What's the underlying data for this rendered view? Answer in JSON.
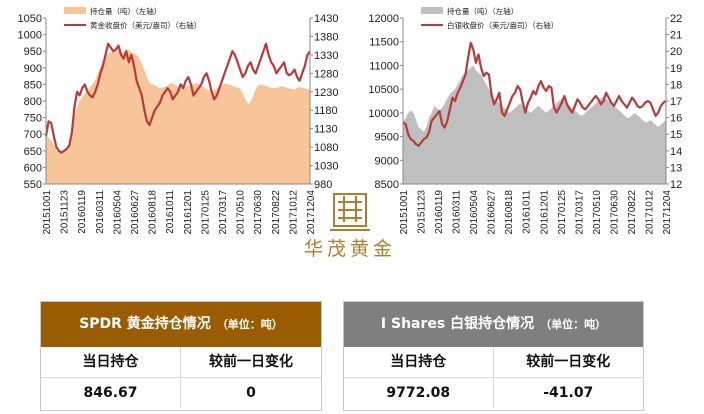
{
  "chart_data": [
    {
      "type": "area+line",
      "title": "",
      "xlabel": "",
      "legend": [
        "持仓量（吨）（左轴）",
        "黄金收盘价（美元/盎司）（右轴）"
      ],
      "legend_position": "top-left",
      "colors": {
        "area": "#f8c49a",
        "line": "#b83a3a"
      },
      "y_left": {
        "ticks": [
          550,
          600,
          650,
          700,
          750,
          800,
          850,
          900,
          950,
          1000,
          1050
        ],
        "range": [
          550,
          1050
        ]
      },
      "y_right": {
        "ticks": [
          980,
          1030,
          1080,
          1130,
          1180,
          1230,
          1280,
          1330,
          1380,
          1430
        ],
        "range": [
          980,
          1430
        ]
      },
      "x_ticks": [
        "20151001",
        "20151123",
        "20160119",
        "20160311",
        "20160504",
        "20160627",
        "20160818",
        "20161011",
        "20161201",
        "20170125",
        "20170317",
        "20170510",
        "20170630",
        "20170822",
        "20171012",
        "20171204"
      ],
      "series": [
        {
          "kind": "area",
          "axis": "left",
          "values": [
            700,
            690,
            680,
            670,
            650,
            650,
            645,
            648,
            650,
            660,
            700,
            750,
            780,
            800,
            810,
            820,
            830,
            840,
            850,
            860,
            880,
            900,
            920,
            930,
            940,
            945,
            950,
            952,
            955,
            950,
            945,
            950,
            955,
            948,
            945,
            940,
            935,
            920,
            900,
            880,
            860,
            850,
            850,
            845,
            840,
            840,
            842,
            845,
            850,
            855,
            850,
            845,
            840,
            840,
            842,
            845,
            848,
            850,
            852,
            855,
            850,
            845,
            840,
            835,
            830,
            832,
            835,
            840,
            845,
            850,
            852,
            850,
            848,
            845,
            842,
            840,
            835,
            820,
            800,
            790,
            800,
            820,
            840,
            848,
            850,
            848,
            845,
            842,
            840,
            838,
            840,
            842,
            845,
            843,
            840,
            838,
            836,
            835,
            840,
            842,
            840,
            838,
            836,
            834
          ]
        },
        {
          "kind": "line",
          "axis": "right",
          "values": [
            1110,
            1150,
            1145,
            1110,
            1080,
            1070,
            1065,
            1070,
            1075,
            1085,
            1120,
            1190,
            1230,
            1220,
            1240,
            1250,
            1230,
            1220,
            1215,
            1230,
            1250,
            1280,
            1300,
            1330,
            1360,
            1350,
            1340,
            1345,
            1355,
            1330,
            1320,
            1340,
            1310,
            1330,
            1300,
            1260,
            1240,
            1220,
            1180,
            1150,
            1140,
            1160,
            1180,
            1190,
            1200,
            1220,
            1230,
            1240,
            1230,
            1210,
            1220,
            1230,
            1250,
            1240,
            1260,
            1270,
            1250,
            1220,
            1230,
            1240,
            1250,
            1270,
            1280,
            1260,
            1230,
            1210,
            1220,
            1240,
            1260,
            1280,
            1300,
            1320,
            1340,
            1330,
            1310,
            1290,
            1270,
            1280,
            1300,
            1310,
            1290,
            1280,
            1300,
            1320,
            1340,
            1360,
            1330,
            1310,
            1300,
            1280,
            1290,
            1300,
            1310,
            1280,
            1275,
            1280,
            1290,
            1270,
            1260,
            1280,
            1300,
            1330,
            1340
          ]
        }
      ]
    },
    {
      "type": "area+line",
      "title": "",
      "xlabel": "",
      "legend": [
        "持仓量（吨）（左轴）",
        "白银收盘价（美元/盎司）（右轴）"
      ],
      "legend_position": "top-left",
      "colors": {
        "area": "#bfbfbf",
        "line": "#b83a3a"
      },
      "y_left": {
        "ticks": [
          8500,
          9000,
          9500,
          10000,
          10500,
          11000,
          11500,
          12000
        ],
        "range": [
          8500,
          12000
        ]
      },
      "y_right": {
        "ticks": [
          12,
          13,
          14,
          15,
          16,
          17,
          18,
          19,
          20,
          21,
          22
        ],
        "range": [
          12,
          22
        ]
      },
      "x_ticks": [
        "20151001",
        "20151123",
        "20160119",
        "20160311",
        "20160504",
        "20160627",
        "20160818",
        "20161011",
        "20161201",
        "20170125",
        "20170317",
        "20170510",
        "20170630",
        "20170822",
        "20171012",
        "20171204"
      ],
      "series": [
        {
          "kind": "area",
          "axis": "left",
          "values": [
            9800,
            9900,
            10000,
            10050,
            10000,
            9850,
            9700,
            9650,
            9600,
            9700,
            9900,
            10000,
            10150,
            10100,
            10050,
            10100,
            10200,
            10300,
            10400,
            10450,
            10500,
            10600,
            10700,
            10800,
            10850,
            10900,
            10950,
            11000,
            10900,
            10850,
            10800,
            10700,
            10600,
            10500,
            10400,
            10300,
            10250,
            10200,
            10150,
            10100,
            10050,
            10000,
            10050,
            10100,
            10150,
            10200,
            10150,
            10100,
            10050,
            10000,
            10050,
            10100,
            10150,
            10100,
            10050,
            10000,
            10050,
            10100,
            10150,
            10200,
            10250,
            10300,
            10250,
            10200,
            10150,
            10100,
            10050,
            10000,
            9950,
            9950,
            10000,
            10050,
            10100,
            10150,
            10200,
            10250,
            10300,
            10350,
            10300,
            10250,
            10200,
            10150,
            10100,
            10050,
            10000,
            9950,
            9900,
            9900,
            9950,
            10000,
            9950,
            9900,
            9850,
            9800,
            9800,
            9850,
            9800,
            9750,
            9700,
            9750,
            9800,
            9850
          ]
        },
        {
          "kind": "line",
          "axis": "right",
          "values": [
            15.7,
            15.6,
            15.0,
            14.7,
            14.6,
            14.4,
            14.3,
            14.5,
            14.7,
            14.8,
            15.1,
            15.8,
            16.0,
            16.2,
            16.4,
            15.6,
            15.4,
            15.8,
            16.5,
            17.2,
            17.0,
            17.5,
            17.8,
            18.2,
            18.6,
            19.6,
            20.5,
            20.1,
            19.3,
            19.8,
            19.0,
            18.5,
            18.7,
            18.6,
            17.4,
            16.8,
            17.1,
            17.5,
            16.3,
            16.1,
            16.5,
            16.9,
            17.3,
            17.5,
            17.9,
            17.7,
            16.9,
            16.3,
            16.9,
            17.2,
            17.6,
            17.4,
            17.9,
            18.2,
            17.8,
            17.6,
            17.9,
            17.8,
            16.6,
            16.3,
            16.6,
            16.9,
            17.3,
            16.8,
            16.5,
            16.3,
            16.7,
            17.1,
            16.9,
            16.6,
            16.5,
            16.7,
            16.9,
            17.1,
            17.3,
            17.1,
            16.8,
            17.0,
            17.5,
            17.2,
            16.9,
            16.7,
            17.0,
            17.3,
            17.0,
            16.8,
            16.6,
            16.9,
            17.2,
            17.0,
            16.7,
            16.6,
            16.7,
            16.9,
            17.0,
            16.9,
            16.5,
            16.1,
            16.3,
            16.7,
            16.9,
            17.0
          ]
        }
      ]
    }
  ],
  "logo": {
    "text": "华茂黄金",
    "color": "#b07d2e"
  },
  "tables": {
    "gold": {
      "title": "SPDR 黄金持仓情况",
      "unit": "（单位：吨）",
      "col1": "当日持仓",
      "col2": "较前一日变化",
      "holding": "846.67",
      "change": "0"
    },
    "silver": {
      "title": "I Shares 白银持仓情况",
      "unit": "（单位：吨）",
      "col1": "当日持仓",
      "col2": "较前一日变化",
      "holding": "9772.08",
      "change": "-41.07"
    }
  }
}
